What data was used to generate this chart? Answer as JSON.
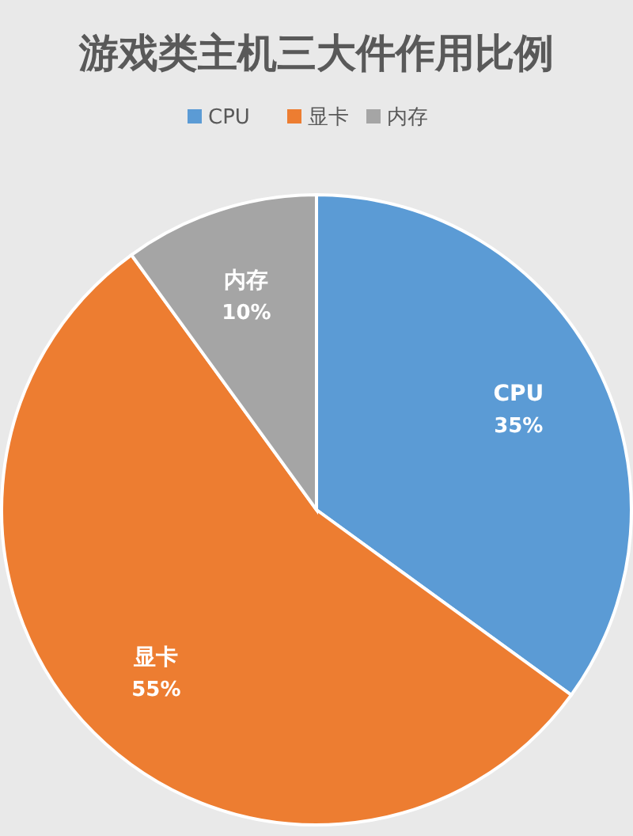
{
  "chart_data": {
    "type": "pie",
    "title": "游戏类主机三大件作用比例",
    "categories": [
      "CPU",
      "显卡",
      "内存"
    ],
    "values": [
      35,
      55,
      10
    ],
    "value_labels": [
      "35%",
      "55%",
      "10%"
    ],
    "colors": [
      "#5b9bd5",
      "#ed7d31",
      "#a5a5a5"
    ],
    "legend": "top",
    "data_labels": true
  }
}
